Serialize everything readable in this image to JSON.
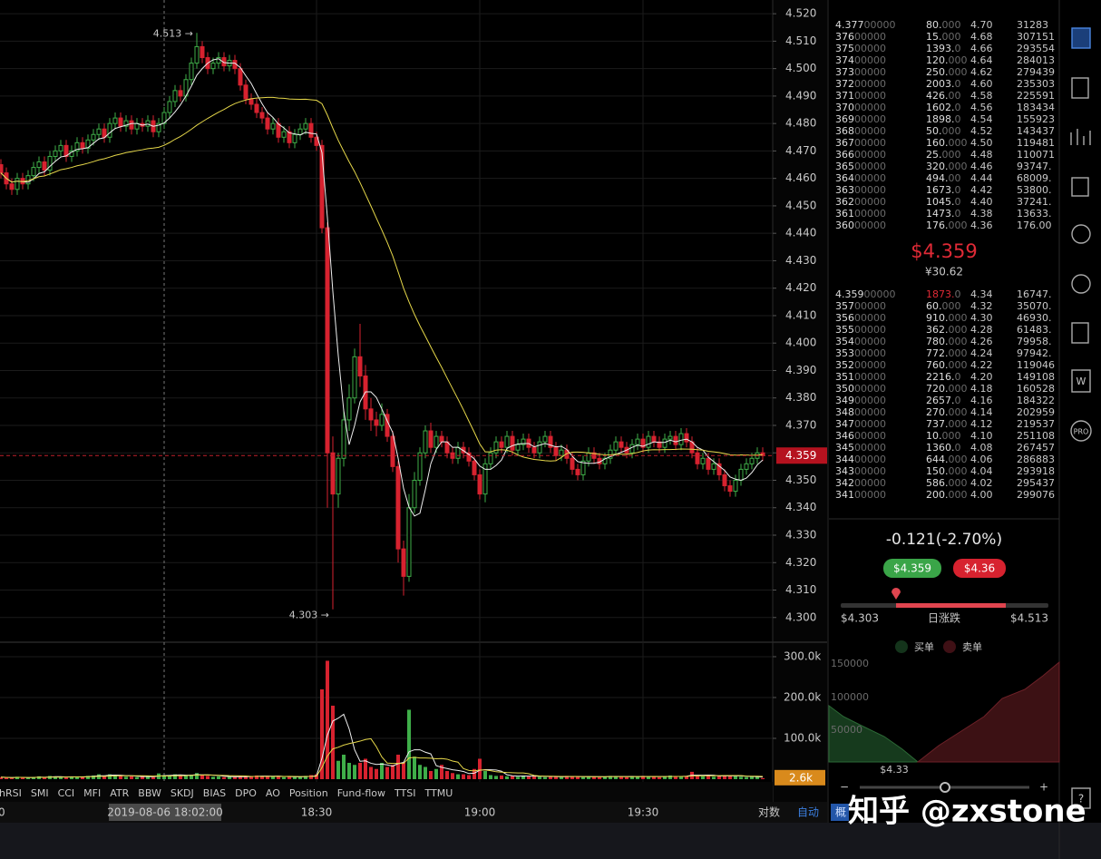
{
  "chart_data": {
    "type": "candlestick",
    "categories": [
      null,
      null,
      null,
      null,
      null,
      null,
      null,
      null,
      null,
      null,
      null,
      null,
      null,
      null,
      null,
      null,
      null,
      null,
      null,
      null,
      null,
      null,
      null,
      null,
      null,
      null,
      null,
      null,
      null,
      null,
      null,
      null,
      null,
      null,
      null,
      null,
      null,
      null,
      null,
      null,
      null,
      null,
      null,
      null,
      null,
      null,
      null,
      null,
      null,
      null,
      null,
      null,
      null,
      null,
      null,
      null,
      null,
      null,
      "18:30",
      null,
      null,
      null,
      null,
      null,
      null,
      null,
      null,
      null,
      null,
      null,
      null,
      null,
      null,
      null,
      null,
      null,
      null,
      null,
      null,
      null,
      null,
      null,
      null,
      null,
      null,
      null,
      null,
      null,
      "19:00",
      null,
      null,
      null,
      null,
      null,
      null,
      null,
      null,
      null,
      null,
      null,
      null,
      null,
      null,
      null,
      null,
      null,
      null,
      null,
      null,
      null,
      null,
      null,
      null,
      null,
      null,
      null,
      null,
      null,
      "19:30",
      null,
      null,
      null,
      null,
      null,
      null,
      null,
      null,
      null,
      null,
      null,
      null,
      null,
      null,
      null,
      null,
      null,
      null,
      null,
      null,
      null,
      null
    ],
    "open": [
      4.465,
      4.462,
      4.458,
      4.456,
      4.46,
      4.458,
      4.461,
      4.464,
      4.466,
      4.463,
      4.468,
      4.47,
      4.472,
      4.468,
      4.47,
      4.473,
      4.471,
      4.474,
      4.476,
      4.478,
      4.475,
      4.48,
      4.482,
      4.479,
      4.481,
      4.478,
      4.48,
      4.479,
      4.481,
      4.477,
      4.48,
      4.484,
      4.488,
      4.492,
      4.49,
      4.496,
      4.502,
      4.508,
      4.504,
      4.5,
      4.502,
      4.504,
      4.501,
      4.503,
      4.5,
      4.494,
      4.489,
      4.487,
      4.484,
      4.482,
      4.478,
      4.48,
      4.475,
      4.477,
      4.473,
      4.476,
      4.478,
      4.48,
      4.475,
      4.472,
      4.442,
      4.36,
      4.345,
      4.358,
      4.372,
      4.38,
      4.395,
      4.388,
      4.376,
      4.372,
      4.37,
      4.374,
      4.366,
      4.355,
      4.325,
      4.315,
      4.34,
      4.35,
      4.36,
      4.368,
      4.362,
      4.366,
      4.364,
      4.36,
      4.358,
      4.362,
      4.36,
      4.357,
      4.352,
      4.345,
      4.356,
      4.36,
      4.364,
      4.362,
      4.366,
      4.361,
      4.363,
      4.365,
      4.362,
      4.36,
      4.364,
      4.366,
      4.362,
      4.359,
      4.361,
      4.358,
      4.354,
      4.352,
      4.357,
      4.36,
      4.358,
      4.356,
      4.358,
      4.361,
      4.364,
      4.362,
      4.36,
      4.363,
      4.365,
      4.362,
      4.366,
      4.364,
      4.362,
      4.365,
      4.366,
      4.363,
      4.367,
      4.364,
      4.36,
      4.356,
      4.358,
      4.354,
      4.356,
      4.352,
      4.348,
      4.346,
      4.35,
      4.354,
      4.356,
      4.358,
      4.36
    ],
    "high": [
      4.467,
      4.464,
      4.46,
      4.462,
      4.462,
      4.463,
      4.466,
      4.468,
      4.468,
      4.47,
      4.472,
      4.474,
      4.474,
      4.472,
      4.475,
      4.475,
      4.476,
      4.478,
      4.48,
      4.48,
      4.482,
      4.484,
      4.484,
      4.483,
      4.483,
      4.482,
      4.482,
      4.483,
      4.483,
      4.482,
      4.486,
      4.49,
      4.494,
      4.494,
      4.498,
      4.504,
      4.513,
      4.51,
      4.506,
      4.504,
      4.506,
      4.506,
      4.505,
      4.505,
      4.502,
      4.496,
      4.491,
      4.489,
      4.486,
      4.484,
      4.482,
      4.482,
      4.479,
      4.479,
      4.478,
      4.48,
      4.482,
      4.482,
      4.477,
      4.474,
      4.444,
      4.366,
      4.36,
      4.376,
      4.385,
      4.398,
      4.407,
      4.392,
      4.38,
      4.375,
      4.378,
      4.376,
      4.368,
      4.357,
      4.328,
      4.345,
      4.353,
      4.362,
      4.37,
      4.371,
      4.368,
      4.368,
      4.366,
      4.362,
      4.364,
      4.364,
      4.362,
      4.359,
      4.354,
      4.358,
      4.362,
      4.366,
      4.366,
      4.368,
      4.368,
      4.365,
      4.367,
      4.367,
      4.364,
      4.366,
      4.368,
      4.368,
      4.364,
      4.363,
      4.363,
      4.36,
      4.356,
      4.359,
      4.362,
      4.362,
      4.36,
      4.36,
      4.363,
      4.366,
      4.366,
      4.364,
      4.365,
      4.367,
      4.367,
      4.368,
      4.368,
      4.366,
      4.367,
      4.368,
      4.368,
      4.369,
      4.369,
      4.366,
      4.362,
      4.36,
      4.36,
      4.358,
      4.358,
      4.354,
      4.35,
      4.352,
      4.356,
      4.358,
      4.36,
      4.362,
      4.362
    ],
    "low": [
      4.46,
      4.456,
      4.454,
      4.454,
      4.456,
      4.456,
      4.459,
      4.462,
      4.461,
      4.461,
      4.466,
      4.468,
      4.466,
      4.466,
      4.468,
      4.469,
      4.469,
      4.472,
      4.474,
      4.473,
      4.473,
      4.478,
      4.477,
      4.477,
      4.476,
      4.476,
      4.477,
      4.477,
      4.475,
      4.475,
      4.478,
      4.482,
      4.486,
      4.488,
      4.488,
      4.494,
      4.5,
      4.502,
      4.498,
      4.498,
      4.5,
      4.499,
      4.499,
      4.498,
      4.492,
      4.487,
      4.485,
      4.482,
      4.48,
      4.476,
      4.476,
      4.473,
      4.473,
      4.471,
      4.471,
      4.474,
      4.476,
      4.473,
      4.47,
      4.44,
      4.34,
      4.303,
      4.34,
      4.355,
      4.368,
      4.378,
      4.384,
      4.372,
      4.368,
      4.366,
      4.368,
      4.364,
      4.353,
      4.32,
      4.308,
      4.313,
      4.338,
      4.348,
      4.358,
      4.36,
      4.36,
      4.362,
      4.358,
      4.356,
      4.356,
      4.358,
      4.355,
      4.35,
      4.343,
      4.342,
      4.354,
      4.358,
      4.36,
      4.36,
      4.359,
      4.359,
      4.361,
      4.36,
      4.358,
      4.358,
      4.362,
      4.36,
      4.357,
      4.357,
      4.356,
      4.352,
      4.35,
      4.35,
      4.355,
      4.356,
      4.354,
      4.354,
      4.356,
      4.359,
      4.36,
      4.358,
      4.358,
      4.361,
      4.36,
      4.36,
      4.362,
      4.36,
      4.36,
      4.363,
      4.361,
      4.361,
      4.362,
      4.358,
      4.354,
      4.354,
      4.352,
      4.352,
      4.35,
      4.346,
      4.344,
      4.344,
      4.348,
      4.352,
      4.354,
      4.356,
      4.357
    ],
    "close": [
      4.462,
      4.458,
      4.456,
      4.46,
      4.458,
      4.461,
      4.464,
      4.466,
      4.463,
      4.468,
      4.47,
      4.472,
      4.468,
      4.47,
      4.473,
      4.471,
      4.474,
      4.476,
      4.478,
      4.475,
      4.48,
      4.482,
      4.479,
      4.481,
      4.478,
      4.48,
      4.479,
      4.481,
      4.477,
      4.48,
      4.484,
      4.488,
      4.492,
      4.49,
      4.496,
      4.502,
      4.508,
      4.504,
      4.5,
      4.502,
      4.504,
      4.501,
      4.503,
      4.5,
      4.494,
      4.489,
      4.487,
      4.484,
      4.482,
      4.478,
      4.48,
      4.475,
      4.477,
      4.473,
      4.476,
      4.478,
      4.48,
      4.475,
      4.472,
      4.442,
      4.36,
      4.345,
      4.358,
      4.372,
      4.38,
      4.395,
      4.388,
      4.376,
      4.372,
      4.37,
      4.374,
      4.366,
      4.355,
      4.325,
      4.315,
      4.34,
      4.35,
      4.36,
      4.368,
      4.362,
      4.366,
      4.364,
      4.36,
      4.358,
      4.362,
      4.36,
      4.357,
      4.352,
      4.345,
      4.356,
      4.36,
      4.364,
      4.362,
      4.366,
      4.361,
      4.363,
      4.365,
      4.362,
      4.36,
      4.364,
      4.366,
      4.362,
      4.359,
      4.361,
      4.358,
      4.354,
      4.352,
      4.357,
      4.36,
      4.358,
      4.356,
      4.358,
      4.361,
      4.364,
      4.362,
      4.36,
      4.363,
      4.365,
      4.362,
      4.366,
      4.364,
      4.362,
      4.365,
      4.366,
      4.363,
      4.367,
      4.364,
      4.36,
      4.356,
      4.358,
      4.354,
      4.356,
      4.352,
      4.348,
      4.346,
      4.35,
      4.354,
      4.356,
      4.358,
      4.36,
      4.359
    ],
    "up_color": "#3fae49",
    "down_color": "#d7222f",
    "ylim": [
      4.291,
      4.525
    ],
    "yticks": [
      {
        "value": 4.52,
        "label": "4.520"
      },
      {
        "value": 4.51,
        "label": "4.510"
      },
      {
        "value": 4.5,
        "label": "4.500"
      },
      {
        "value": 4.49,
        "label": "4.490"
      },
      {
        "value": 4.48,
        "label": "4.480"
      },
      {
        "value": 4.47,
        "label": "4.470"
      },
      {
        "value": 4.46,
        "label": "4.460"
      },
      {
        "value": 4.45,
        "label": "4.450"
      },
      {
        "value": 4.44,
        "label": "4.440"
      },
      {
        "value": 4.43,
        "label": "4.430"
      },
      {
        "value": 4.42,
        "label": "4.420"
      },
      {
        "value": 4.41,
        "label": "4.410"
      },
      {
        "value": 4.4,
        "label": "4.400"
      },
      {
        "value": 4.39,
        "label": "4.390"
      },
      {
        "value": 4.38,
        "label": "4.380"
      },
      {
        "value": 4.37,
        "label": "4.370"
      },
      {
        "value": 4.36,
        "label": "4.360"
      },
      {
        "value": 4.35,
        "label": "4.350"
      },
      {
        "value": 4.34,
        "label": "4.340"
      },
      {
        "value": 4.33,
        "label": "4.330"
      },
      {
        "value": 4.32,
        "label": "4.320"
      },
      {
        "value": 4.31,
        "label": "4.310"
      },
      {
        "value": 4.3,
        "label": "4.300"
      }
    ],
    "grid": true,
    "high_label": {
      "value": 4.513,
      "label": "4.513 →"
    },
    "low_label": {
      "value": 4.303,
      "label": "4.303 →"
    },
    "current_price": {
      "value": 4.359,
      "label": "4.359"
    },
    "crosshair_label": "2019-08-06 18:02:00",
    "left_time_fragment": "0",
    "volume": {
      "values": [
        5000,
        4000,
        3000,
        6000,
        4000,
        3000,
        5000,
        7000,
        4000,
        8000,
        6000,
        5000,
        4000,
        6000,
        7000,
        5000,
        8000,
        9000,
        12000,
        7000,
        12000,
        10000,
        8000,
        6000,
        7000,
        5000,
        6000,
        8000,
        5000,
        14000,
        10000,
        9000,
        12000,
        8000,
        9000,
        11000,
        15000,
        10000,
        8000,
        6000,
        7000,
        5000,
        6000,
        5000,
        8000,
        7000,
        6000,
        9000,
        7000,
        8000,
        6000,
        7000,
        5000,
        6000,
        5000,
        6000,
        8000,
        10000,
        12000,
        220000,
        290000,
        180000,
        45000,
        60000,
        40000,
        35000,
        40000,
        50000,
        30000,
        25000,
        40000,
        30000,
        35000,
        60000,
        40000,
        170000,
        55000,
        35000,
        30000,
        20000,
        25000,
        35000,
        20000,
        15000,
        12000,
        12000,
        10000,
        25000,
        50000,
        20000,
        10000,
        8000,
        9000,
        7000,
        8000,
        6000,
        9000,
        7000,
        8000,
        6000,
        5000,
        7000,
        6000,
        5000,
        8000,
        6000,
        7000,
        5000,
        6000,
        7000,
        5000,
        6000,
        8000,
        7000,
        6000,
        5000,
        7000,
        6000,
        8000,
        6000,
        7000,
        5000,
        6000,
        9000,
        7000,
        6000,
        8000,
        18000,
        9000,
        7000,
        8000,
        6000,
        9000,
        10000,
        8000,
        7000,
        6000,
        5000,
        7000,
        6000,
        2600
      ],
      "ylim": [
        0,
        331000
      ],
      "yticks": [
        {
          "value": 300000,
          "label": "300.0k"
        },
        {
          "value": 200000,
          "label": "200.0k"
        },
        {
          "value": 100000,
          "label": "100.0k"
        }
      ],
      "last_label": {
        "value": 2600,
        "label": "2.6k"
      }
    }
  },
  "toolbar": {
    "indicators": [
      "hRSI",
      "SMI",
      "CCI",
      "MFI",
      "ATR",
      "BBW",
      "SKDJ",
      "BIAS",
      "DPO",
      "AO",
      "Position",
      "Fund-flow",
      "TTSI",
      "TTMU"
    ],
    "log_scale": "对数",
    "auto": "自动",
    "overview": "概"
  },
  "order_book": {
    "asks": [
      [
        "4.37700000",
        "80.000",
        "4.70",
        "31283"
      ],
      [
        "37600000",
        "15.000",
        "4.68",
        "307151"
      ],
      [
        "37500000",
        "1393.0",
        "4.66",
        "293554"
      ],
      [
        "37400000",
        "120.000",
        "4.64",
        "284013"
      ],
      [
        "37300000",
        "250.000",
        "4.62",
        "279439"
      ],
      [
        "37200000",
        "2003.0",
        "4.60",
        "235303"
      ],
      [
        "37100000",
        "426.00",
        "4.58",
        "225591"
      ],
      [
        "37000000",
        "1602.0",
        "4.56",
        "183434"
      ],
      [
        "36900000",
        "1898.0",
        "4.54",
        "155923"
      ],
      [
        "36800000",
        "50.000",
        "4.52",
        "143437"
      ],
      [
        "36700000",
        "160.000",
        "4.50",
        "119481"
      ],
      [
        "36600000",
        "25.000",
        "4.48",
        "110071"
      ],
      [
        "36500000",
        "320.000",
        "4.46",
        "93747."
      ],
      [
        "36400000",
        "494.00",
        "4.44",
        "68009."
      ],
      [
        "36300000",
        "1673.0",
        "4.42",
        "53800."
      ],
      [
        "36200000",
        "1045.0",
        "4.40",
        "37241."
      ],
      [
        "36100000",
        "1473.0",
        "4.38",
        "13633."
      ],
      [
        "36000000",
        "176.000",
        "4.36",
        "176.00"
      ]
    ],
    "last_price": "$4.359",
    "last_price_cny": "¥30.62",
    "bids": [
      [
        "4.35900000",
        "1873.0",
        "4.34",
        "16747."
      ],
      [
        "35700000",
        "60.000",
        "4.32",
        "35070."
      ],
      [
        "35600000",
        "910.000",
        "4.30",
        "46930."
      ],
      [
        "35500000",
        "362.000",
        "4.28",
        "61483."
      ],
      [
        "35400000",
        "780.000",
        "4.26",
        "79958."
      ],
      [
        "35300000",
        "772.000",
        "4.24",
        "97942."
      ],
      [
        "35200000",
        "760.000",
        "4.22",
        "119046"
      ],
      [
        "35100000",
        "2216.0",
        "4.20",
        "149108"
      ],
      [
        "35000000",
        "720.000",
        "4.18",
        "160528"
      ],
      [
        "34900000",
        "2657.0",
        "4.16",
        "184322"
      ],
      [
        "34800000",
        "270.000",
        "4.14",
        "202959"
      ],
      [
        "34700000",
        "737.000",
        "4.12",
        "219537"
      ],
      [
        "34600000",
        "10.000",
        "4.10",
        "251108"
      ],
      [
        "34500000",
        "1360.0",
        "4.08",
        "267457"
      ],
      [
        "34400000",
        "644.000",
        "4.06",
        "286883"
      ],
      [
        "34300000",
        "150.000",
        "4.04",
        "293918"
      ],
      [
        "34200000",
        "586.000",
        "4.02",
        "295437"
      ],
      [
        "34100000",
        "200.000",
        "4.00",
        "299076"
      ]
    ]
  },
  "ticker": {
    "change": "-0.121(-2.70%)",
    "bid_button": "$4.359",
    "ask_button": "$4.36",
    "range_low": "$4.303",
    "range_label": "日涨跌",
    "range_high": "$4.513",
    "legend_buy": "买单",
    "legend_sell": "卖单",
    "depth_yticks": [
      "150000",
      "100000",
      "50000"
    ],
    "depth_price": "$4.33",
    "zoom_out": "−",
    "zoom_in": "+"
  },
  "sidebar": {
    "w_icon": "W",
    "pro": "PRO",
    "help": "?"
  },
  "watermark": "知乎 @zxstone"
}
